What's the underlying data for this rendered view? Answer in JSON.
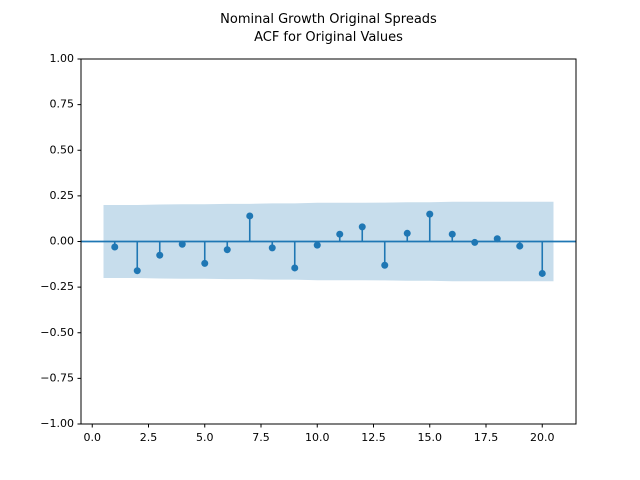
{
  "figure": {
    "background": "#ffffff"
  },
  "chart_data": {
    "type": "stem",
    "title": "Nominal Growth Original Spreads\nACF for Original Values",
    "title_lines": [
      "Nominal Growth Original Spreads",
      "ACF for Original Values"
    ],
    "xlabel": "",
    "ylabel": "",
    "xlim": [
      -0.5,
      21.5
    ],
    "ylim": [
      -1.0,
      1.0
    ],
    "grid": false,
    "legend": null,
    "x": [
      1,
      2,
      3,
      4,
      5,
      6,
      7,
      8,
      9,
      10,
      11,
      12,
      13,
      14,
      15,
      16,
      17,
      18,
      19,
      20
    ],
    "values": [
      -0.03,
      -0.16,
      -0.075,
      -0.015,
      -0.12,
      -0.045,
      0.14,
      -0.035,
      -0.145,
      -0.02,
      0.04,
      0.08,
      -0.13,
      0.045,
      0.15,
      0.04,
      -0.005,
      0.015,
      -0.025,
      -0.175
    ],
    "zero_line_y": 0,
    "confidence_band": {
      "x": [
        0.5,
        2,
        3,
        4,
        5,
        6,
        7,
        8,
        9,
        10,
        11,
        12,
        13,
        14,
        15,
        16,
        17,
        18,
        19,
        20.5
      ],
      "upper": [
        0.2,
        0.2,
        0.203,
        0.204,
        0.204,
        0.206,
        0.206,
        0.209,
        0.209,
        0.212,
        0.212,
        0.212,
        0.213,
        0.215,
        0.215,
        0.218,
        0.218,
        0.218,
        0.218,
        0.218
      ],
      "lower": [
        -0.2,
        -0.2,
        -0.203,
        -0.204,
        -0.204,
        -0.206,
        -0.206,
        -0.209,
        -0.209,
        -0.212,
        -0.212,
        -0.212,
        -0.213,
        -0.215,
        -0.215,
        -0.218,
        -0.218,
        -0.218,
        -0.218,
        -0.218
      ]
    },
    "xticks": {
      "values": [
        0,
        2.5,
        5,
        7.5,
        10,
        12.5,
        15,
        17.5,
        20
      ],
      "labels": [
        "0.0",
        "2.5",
        "5.0",
        "7.5",
        "10.0",
        "12.5",
        "15.0",
        "17.5",
        "20.0"
      ]
    },
    "yticks": {
      "values": [
        1.0,
        0.75,
        0.5,
        0.25,
        0.0,
        -0.25,
        -0.5,
        -0.75,
        -1.0
      ],
      "labels": [
        "1.00",
        "0.75",
        "0.50",
        "0.25",
        "0.00",
        "−0.25",
        "−0.50",
        "−0.75",
        "−1.00"
      ]
    },
    "colors": {
      "stem": "#1f77b4",
      "marker": "#1f77b4",
      "zero_line": "#1f77b4",
      "band": "#c7ddec",
      "spine": "#000000",
      "tick": "#000000"
    }
  }
}
